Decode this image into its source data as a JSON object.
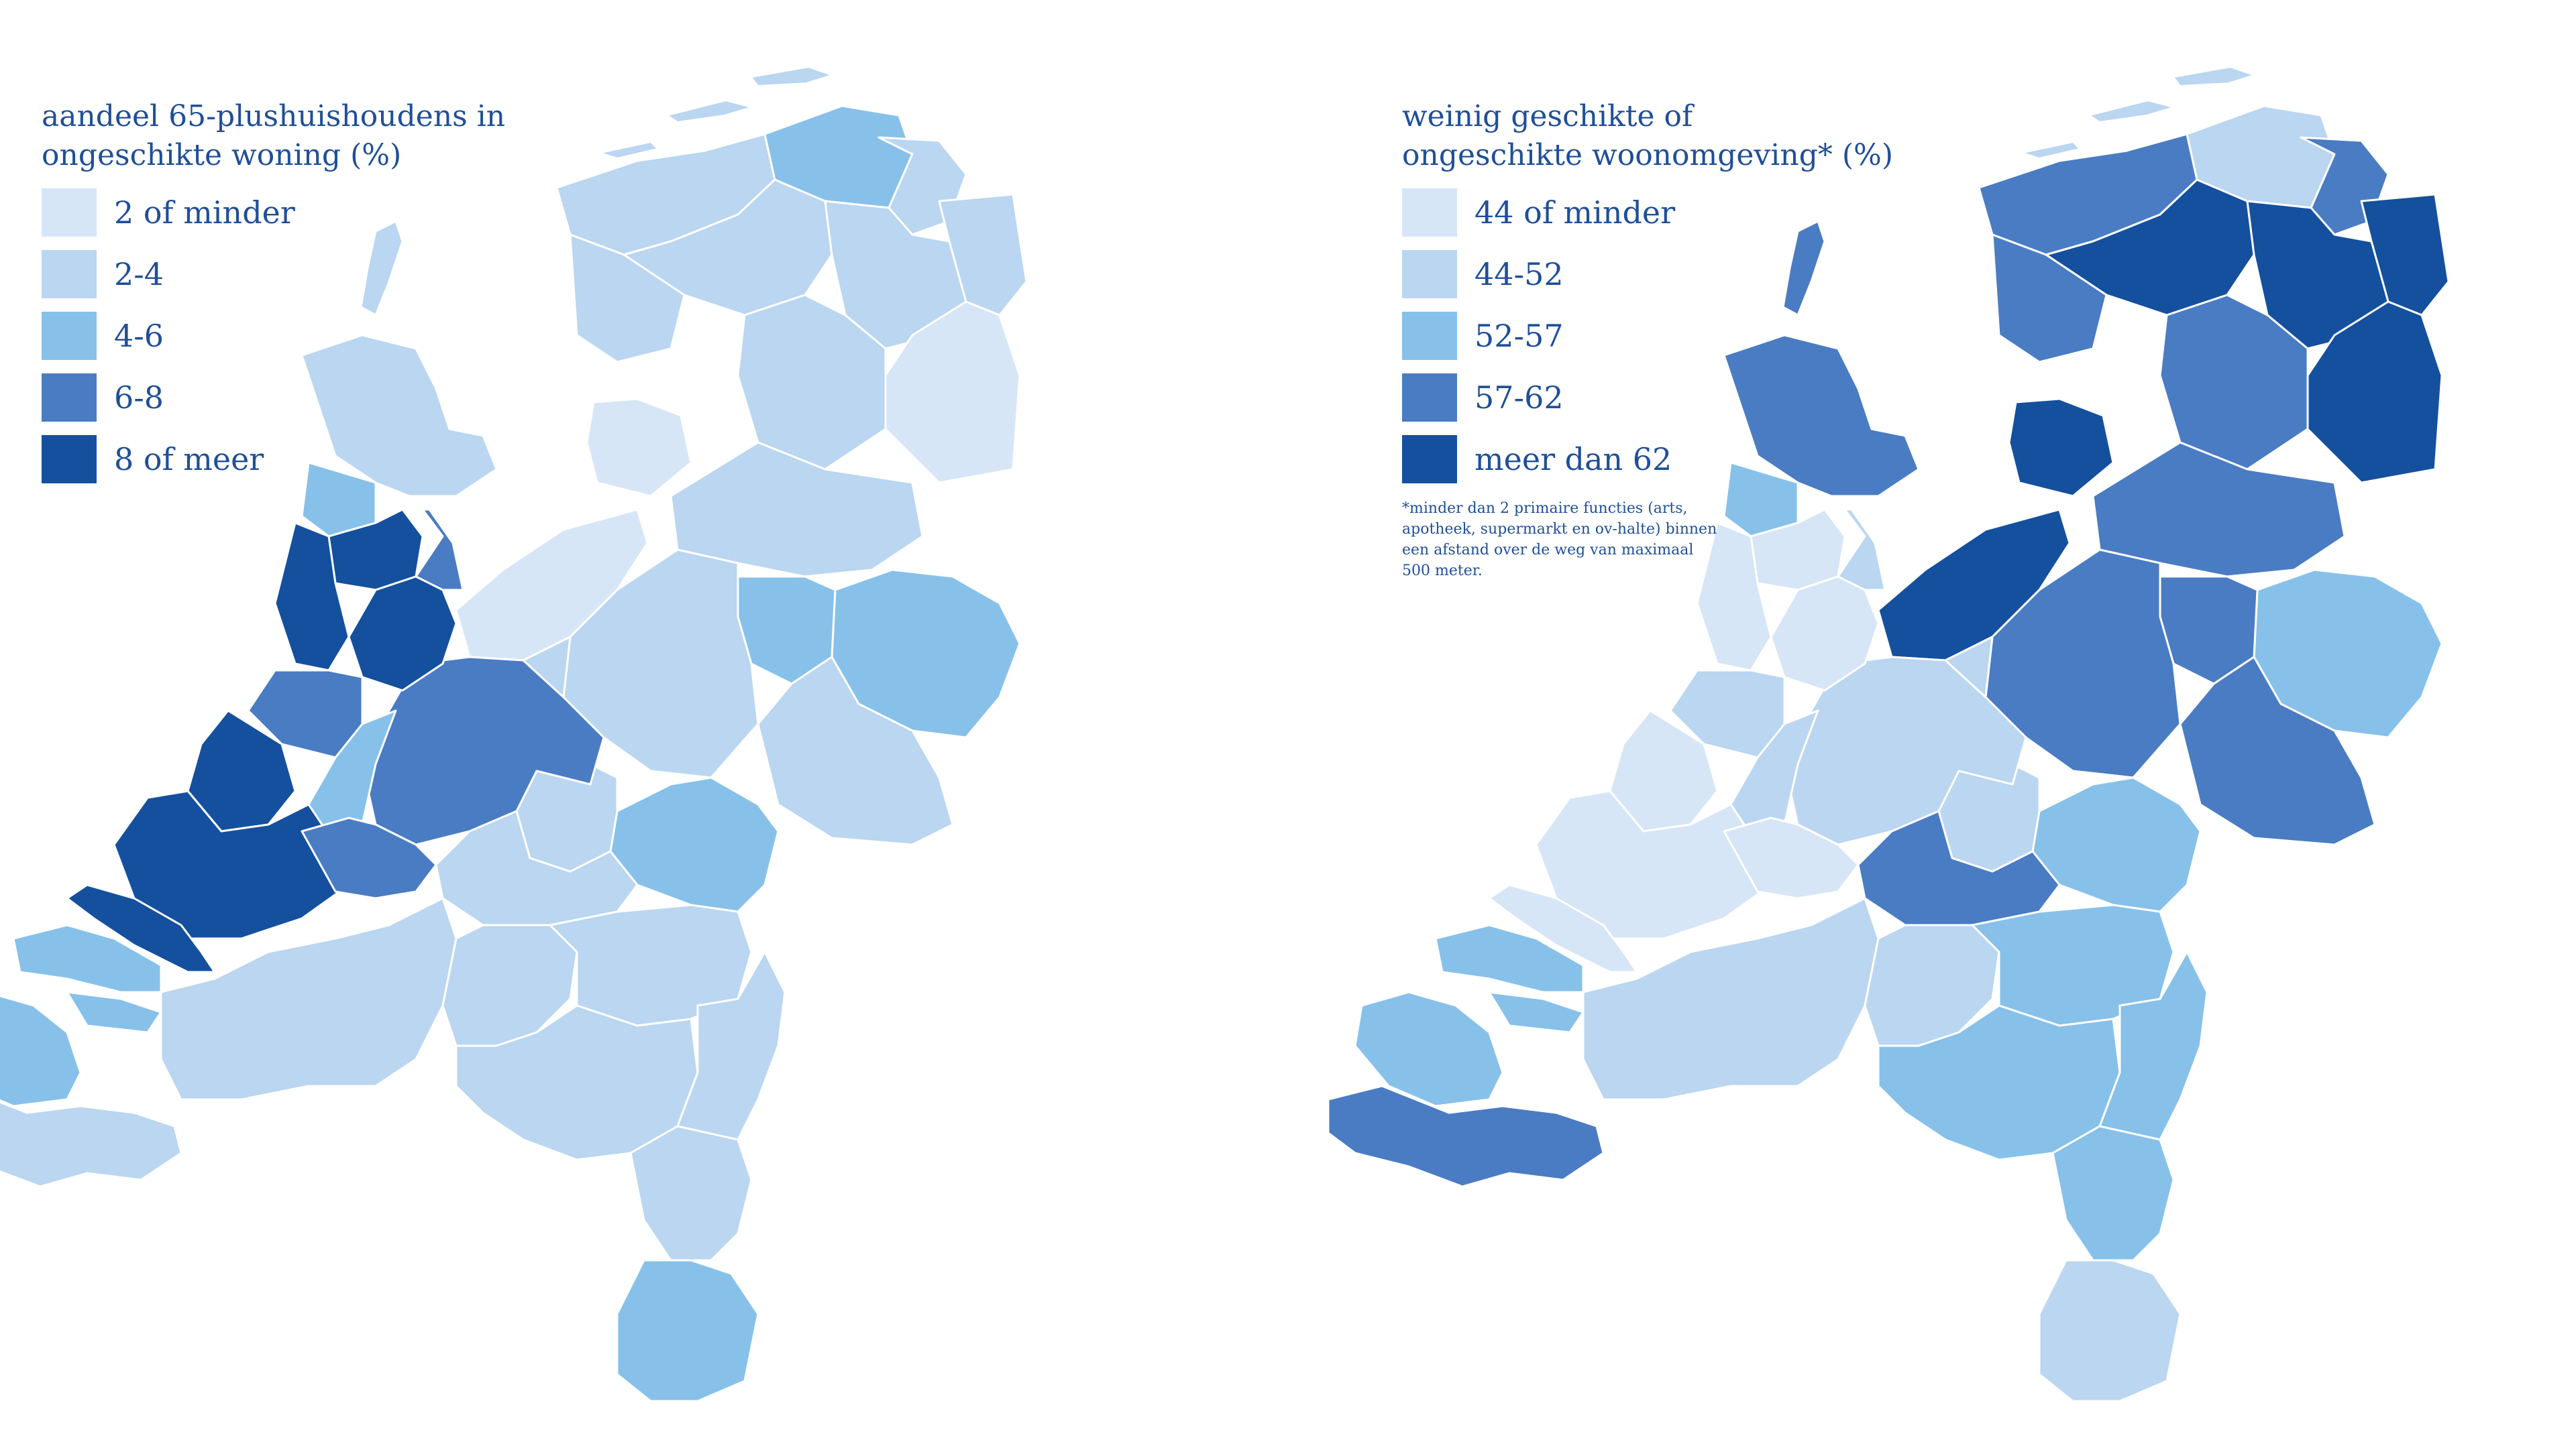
{
  "colors": {
    "c1": "#d6e6f7",
    "c2": "#bad6f0",
    "c3": "#87c1ea",
    "c4": "#4a7cc3",
    "c5": "#15509e",
    "text": "#1f4f99"
  },
  "maps": [
    {
      "title_line1": "aandeel 65-plushuishoudens in",
      "title_line2": "ongeschikte woning (%)",
      "legend": [
        {
          "label": "2 of minder",
          "color": "#d6e6f7"
        },
        {
          "label": "2-4",
          "color": "#bad6f0"
        },
        {
          "label": "4-6",
          "color": "#87c1ea"
        },
        {
          "label": "6-8",
          "color": "#4a7cc3"
        },
        {
          "label": "8 of meer",
          "color": "#15509e"
        }
      ],
      "footnote": "",
      "regions": [
        {
          "id": "friesland-west",
          "cls": 2
        },
        {
          "id": "friesland-mid",
          "cls": 2
        },
        {
          "id": "friesland-south",
          "cls": 2
        },
        {
          "id": "groningen-north",
          "cls": 3
        },
        {
          "id": "groningen-east",
          "cls": 2
        },
        {
          "id": "groningen-city",
          "cls": 2
        },
        {
          "id": "drenthe-north",
          "cls": 2
        },
        {
          "id": "drenthe-southeast",
          "cls": 1
        },
        {
          "id": "drenthe-southwest",
          "cls": 2
        },
        {
          "id": "noordoostpolder",
          "cls": 1
        },
        {
          "id": "flevoland",
          "cls": 1
        },
        {
          "id": "overijssel-west",
          "cls": 2
        },
        {
          "id": "twente",
          "cls": 3
        },
        {
          "id": "salland",
          "cls": 3
        },
        {
          "id": "veluwe-north",
          "cls": 2
        },
        {
          "id": "achterhoek",
          "cls": 2
        },
        {
          "id": "arnhem-nijmegen",
          "cls": 3
        },
        {
          "id": "veluwe-south",
          "cls": 2
        },
        {
          "id": "utrecht",
          "cls": 4
        },
        {
          "id": "utrecht-east",
          "cls": 2
        },
        {
          "id": "kop-noord-holland",
          "cls": 2
        },
        {
          "id": "texel",
          "cls": 2
        },
        {
          "id": "alkmaar",
          "cls": 3
        },
        {
          "id": "zaanstreek",
          "cls": 5
        },
        {
          "id": "amsterdam",
          "cls": 5
        },
        {
          "id": "gooi",
          "cls": 4
        },
        {
          "id": "haarlem-kust",
          "cls": 5
        },
        {
          "id": "leiden",
          "cls": 4
        },
        {
          "id": "den-haag",
          "cls": 5
        },
        {
          "id": "gouda-groene-hart",
          "cls": 3
        },
        {
          "id": "rotterdam",
          "cls": 5
        },
        {
          "id": "voorne",
          "cls": 5
        },
        {
          "id": "drechtsteden",
          "cls": 4
        },
        {
          "id": "rivierenland",
          "cls": 2
        },
        {
          "id": "zeeland-north",
          "cls": 3
        },
        {
          "id": "walcheren",
          "cls": 3
        },
        {
          "id": "zeeuws-vlaanderen",
          "cls": 2
        },
        {
          "id": "west-brabant",
          "cls": 2
        },
        {
          "id": "midden-brabant",
          "cls": 2
        },
        {
          "id": "noordoost-brabant",
          "cls": 2
        },
        {
          "id": "zuidoost-brabant",
          "cls": 2
        },
        {
          "id": "noord-limburg",
          "cls": 2
        },
        {
          "id": "midden-limburg",
          "cls": 2
        },
        {
          "id": "zuid-limburg",
          "cls": 3
        },
        {
          "id": "wadden-islands",
          "cls": 2
        }
      ]
    },
    {
      "title_line1": "weinig geschikte of",
      "title_line2": "ongeschikte woonomgeving* (%)",
      "legend": [
        {
          "label": "44 of minder",
          "color": "#d6e6f7"
        },
        {
          "label": "44-52",
          "color": "#bad6f0"
        },
        {
          "label": "52-57",
          "color": "#87c1ea"
        },
        {
          "label": "57-62",
          "color": "#4a7cc3"
        },
        {
          "label": "meer dan 62",
          "color": "#15509e"
        }
      ],
      "footnote": "*minder dan 2 primaire functies (arts, apotheek, supermarkt en ov-halte) binnen een afstand over de weg van maximaal 500 meter.",
      "regions": [
        {
          "id": "friesland-west",
          "cls": 4
        },
        {
          "id": "friesland-mid",
          "cls": 5
        },
        {
          "id": "friesland-south",
          "cls": 4
        },
        {
          "id": "groningen-north",
          "cls": 2
        },
        {
          "id": "groningen-east",
          "cls": 4
        },
        {
          "id": "groningen-city",
          "cls": 5
        },
        {
          "id": "drenthe-north",
          "cls": 5
        },
        {
          "id": "drenthe-southeast",
          "cls": 5
        },
        {
          "id": "drenthe-southwest",
          "cls": 4
        },
        {
          "id": "noordoostpolder",
          "cls": 5
        },
        {
          "id": "flevoland",
          "cls": 5
        },
        {
          "id": "overijssel-west",
          "cls": 4
        },
        {
          "id": "twente",
          "cls": 3
        },
        {
          "id": "salland",
          "cls": 4
        },
        {
          "id": "veluwe-north",
          "cls": 4
        },
        {
          "id": "achterhoek",
          "cls": 4
        },
        {
          "id": "arnhem-nijmegen",
          "cls": 3
        },
        {
          "id": "veluwe-south",
          "cls": 2
        },
        {
          "id": "utrecht",
          "cls": 2
        },
        {
          "id": "utrecht-east",
          "cls": 2
        },
        {
          "id": "kop-noord-holland",
          "cls": 4
        },
        {
          "id": "texel",
          "cls": 4
        },
        {
          "id": "alkmaar",
          "cls": 3
        },
        {
          "id": "zaanstreek",
          "cls": 1
        },
        {
          "id": "amsterdam",
          "cls": 1
        },
        {
          "id": "gooi",
          "cls": 2
        },
        {
          "id": "haarlem-kust",
          "cls": 1
        },
        {
          "id": "leiden",
          "cls": 2
        },
        {
          "id": "den-haag",
          "cls": 1
        },
        {
          "id": "gouda-groene-hart",
          "cls": 2
        },
        {
          "id": "rotterdam",
          "cls": 1
        },
        {
          "id": "voorne",
          "cls": 1
        },
        {
          "id": "drechtsteden",
          "cls": 1
        },
        {
          "id": "rivierenland",
          "cls": 4
        },
        {
          "id": "zeeland-north",
          "cls": 3
        },
        {
          "id": "walcheren",
          "cls": 3
        },
        {
          "id": "zeeuws-vlaanderen",
          "cls": 4
        },
        {
          "id": "west-brabant",
          "cls": 2
        },
        {
          "id": "midden-brabant",
          "cls": 2
        },
        {
          "id": "noordoost-brabant",
          "cls": 3
        },
        {
          "id": "zuidoost-brabant",
          "cls": 3
        },
        {
          "id": "noord-limburg",
          "cls": 3
        },
        {
          "id": "midden-limburg",
          "cls": 3
        },
        {
          "id": "zuid-limburg",
          "cls": 2
        },
        {
          "id": "wadden-islands",
          "cls": 2
        }
      ]
    }
  ]
}
